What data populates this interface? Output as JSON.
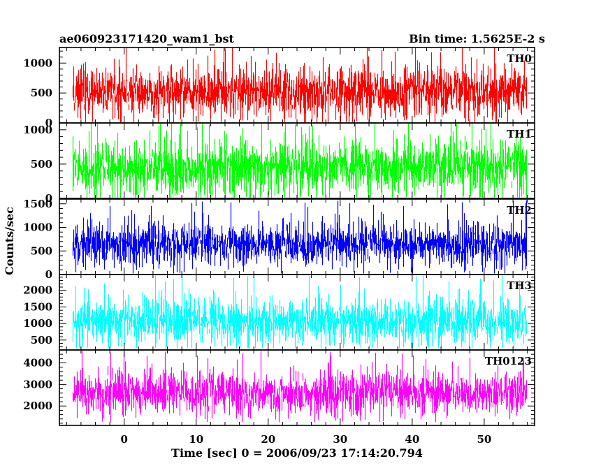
{
  "header": {
    "title": "ae060923171420_wam1_bst",
    "bin_time": "Bin time: 1.5625E-2 s"
  },
  "chart_data": {
    "type": "line",
    "xlabel": "Time [sec] 0 = 2006/09/23 17:14:20.794",
    "ylabel": "Counts/sec",
    "xlim": [
      -9,
      57
    ],
    "x_data_range": [
      -7.2,
      55.8
    ],
    "x_ticks": [
      0,
      10,
      20,
      30,
      40,
      50
    ],
    "panels": [
      {
        "name": "TH0",
        "color": "#ff0000",
        "ylim": [
          0,
          1260
        ],
        "yticks": [
          0,
          500,
          1000
        ],
        "baseline": 520,
        "spread": 205,
        "min": 10,
        "max": 1260
      },
      {
        "name": "TH1",
        "color": "#00ff00",
        "ylim": [
          0,
          1100
        ],
        "yticks": [
          0,
          500,
          1000
        ],
        "baseline": 455,
        "spread": 190,
        "min": 10,
        "max": 1100
      },
      {
        "name": "TH2",
        "color": "#0000ff",
        "ylim": [
          0,
          1600
        ],
        "yticks": [
          0,
          500,
          1000,
          1500
        ],
        "baseline": 640,
        "spread": 215,
        "min": 20,
        "max": 1600
      },
      {
        "name": "TH3",
        "color": "#00ffff",
        "ylim": [
          200,
          2480
        ],
        "yticks": [
          500,
          1000,
          1500,
          2000
        ],
        "baseline": 1080,
        "spread": 330,
        "min": 260,
        "max": 2450
      },
      {
        "name": "TH0123",
        "color": "#ff00ff",
        "ylim": [
          1100,
          4600
        ],
        "yticks": [
          2000,
          3000,
          4000
        ],
        "baseline": 2620,
        "spread": 470,
        "min": 1250,
        "max": 4550
      }
    ]
  }
}
